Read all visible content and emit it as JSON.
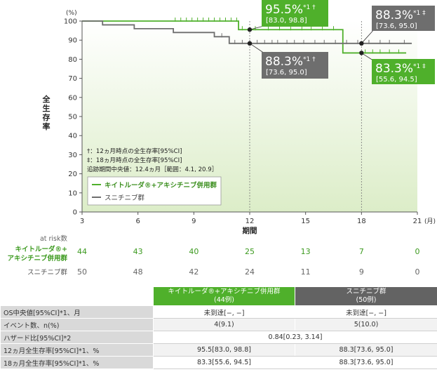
{
  "chart_data": {
    "type": "line",
    "step": true,
    "ylabel": "全生存率",
    "xlabel": "期間",
    "y_unit": "(%)",
    "x_unit": "(月)",
    "xlim": [
      3,
      21
    ],
    "ylim": [
      0,
      100
    ],
    "xticks": [
      3,
      6,
      9,
      12,
      15,
      18,
      21
    ],
    "yticks": [
      0,
      10,
      20,
      30,
      40,
      50,
      60,
      70,
      80,
      90,
      100
    ],
    "grid": false,
    "series": [
      {
        "name": "キイトルーダ®+アキシチニブ併用群",
        "color": "#4fb02b",
        "x": [
          3,
          11.4,
          17.0,
          20.4
        ],
        "y": [
          100,
          95.5,
          83.3,
          83.3
        ],
        "censor_x": [
          8.0,
          8.3,
          8.6,
          8.9,
          9.2,
          9.5,
          9.8,
          10.1,
          10.4,
          10.7,
          11.0,
          11.3,
          11.6,
          12.3,
          13.0,
          13.6,
          14.2,
          14.8,
          15.3,
          15.9,
          16.5,
          18.2,
          18.6,
          19.0,
          19.5,
          20.0
        ]
      },
      {
        "name": "スニチニブ群",
        "color": "#6e6e6e",
        "x": [
          3,
          4.1,
          5.8,
          7.9,
          10.1,
          10.9,
          20.7
        ],
        "y": [
          100,
          98.0,
          96.0,
          94.0,
          91.8,
          88.3,
          88.3
        ],
        "censor_x": [
          10.5,
          11.2,
          11.6,
          12.0,
          12.4,
          12.8,
          13.2,
          13.5,
          14.0,
          14.4,
          14.9,
          15.5,
          16.0,
          16.6,
          17.2,
          17.8,
          18.4,
          19.0,
          19.5,
          20.3
        ]
      }
    ],
    "callouts": [
      {
        "value": "95.5%",
        "marks": "*1 †",
        "ci": "[83.0, 98.8]",
        "color": "#4fb02b",
        "x": 12,
        "y": 95.5
      },
      {
        "value": "88.3%",
        "marks": "*1 †",
        "ci": "[73.6, 95.0]",
        "color": "#6e6e6e",
        "x": 12,
        "y": 88.3
      },
      {
        "value": "88.3%",
        "marks": "*1 ‡",
        "ci": "[73.6, 95.0]",
        "color": "#6e6e6e",
        "x": 18,
        "y": 88.3
      },
      {
        "value": "83.3%",
        "marks": "*1 ‡",
        "ci": "[55.6, 94.5]",
        "color": "#4fb02b",
        "x": 18,
        "y": 83.3
      }
    ],
    "notes": [
      "†：12ヵ月時点の全生存率[95%CI]",
      "‡：18ヵ月時点の全生存率[95%CI]",
      "追跡期間中央値：12.4ヵ月［範囲：4.1, 20.9］"
    ],
    "legend": [
      {
        "label": "キイトルーダ®+アキシチニブ併用群",
        "color": "#4fb02b"
      },
      {
        "label": "スニチニブ群",
        "color": "#6e6e6e"
      }
    ],
    "at_risk": {
      "title": "at risk数",
      "x": [
        3,
        6,
        9,
        12,
        15,
        18,
        21
      ],
      "rows": [
        {
          "label_line1": "キイトルーダ®+",
          "label_line2": "アキシチニブ併用群",
          "color": "#4fb02b",
          "values": [
            44,
            43,
            40,
            25,
            13,
            7,
            0
          ]
        },
        {
          "label": "スニチニブ群",
          "color": "#6e6e6e",
          "values": [
            50,
            48,
            42,
            24,
            11,
            9,
            0
          ]
        }
      ]
    }
  },
  "table": {
    "headers": [
      {
        "line1": "キイトルーダ®+アキシチニブ併用群",
        "line2": "(44例)"
      },
      {
        "line1": "スニチニブ群",
        "line2": "(50例)"
      }
    ],
    "rows": [
      {
        "label": "OS中央値[95%CI]*1、月",
        "g": "未到達[−, −]",
        "s": "未到達[−, −]"
      },
      {
        "label": "イベント数、n(%)",
        "g": "4(9.1)",
        "s": "5(10.0)"
      },
      {
        "label": "ハザード比[95%CI]*2",
        "merged": "0.84[0.23, 3.14]"
      },
      {
        "label": "12ヵ月全生存率[95%CI]*1、%",
        "g": "95.5[83.0, 98.8]",
        "s": "88.3[73.6, 95.0]"
      },
      {
        "label": "18ヵ月全生存率[95%CI]*1、%",
        "g": "83.3[55.6, 94.5]",
        "s": "88.3[73.6, 95.0]"
      }
    ]
  }
}
